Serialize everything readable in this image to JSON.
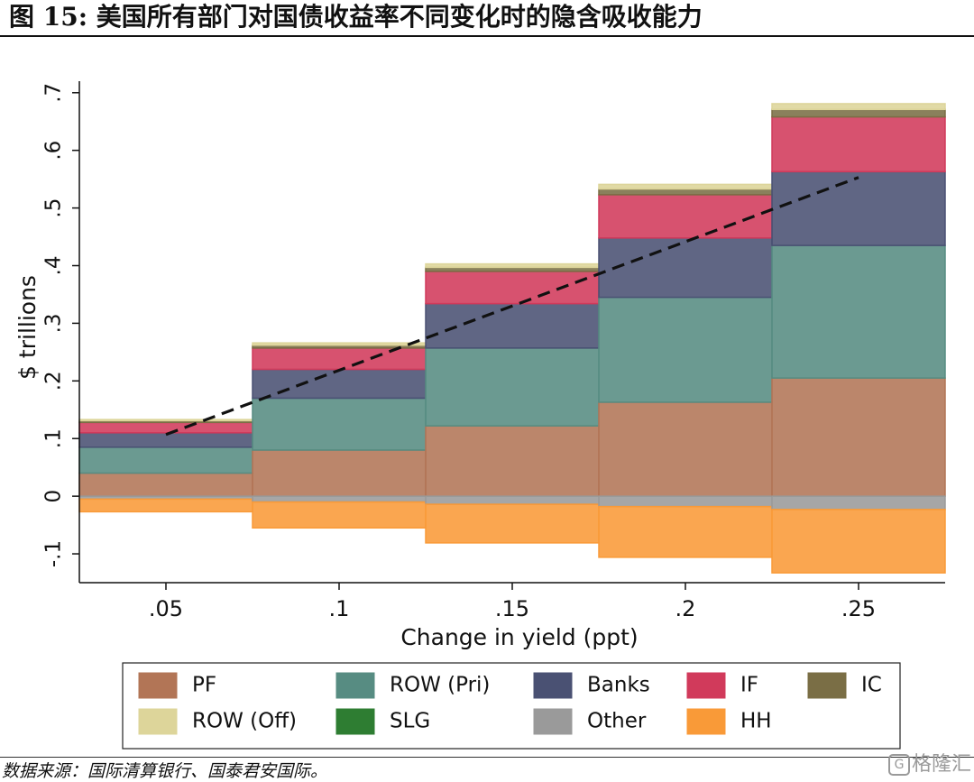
{
  "figure_title": "图 15:  美国所有部门对国债收益率不同变化时的隐含吸收能力",
  "source_text": "数据来源：国际清算银行、国泰君安国际。",
  "watermark_text": "格隆汇",
  "colors": {
    "PF": "#b27556",
    "ROW (Pri)": "#578c82",
    "Banks": "#4a5173",
    "IF": "#d13a5b",
    "IC": "#7a6e45",
    "ROW (Off)": "#ddd59a",
    "SLG": "#2e7d32",
    "Other": "#9a9a9a",
    "HH": "#f99a38",
    "trend": "#111111",
    "axis": "#111111"
  },
  "chart_data": {
    "type": "bar",
    "subtype": "stacked-step",
    "title": "",
    "xlabel": "Change in yield (ppt)",
    "ylabel": "$ trillions",
    "categories": [
      ".05",
      ".1",
      ".15",
      ".2",
      ".25"
    ],
    "x": [
      0.05,
      0.1,
      0.15,
      0.2,
      0.25
    ],
    "xlim": [
      0.025,
      0.275
    ],
    "ylim": [
      -0.15,
      0.72
    ],
    "yticks": [
      -0.1,
      0,
      0.1,
      0.2,
      0.3,
      0.4,
      0.5,
      0.6,
      0.7
    ],
    "ytick_labels": [
      "-.1",
      "0",
      ".1",
      ".2",
      ".3",
      ".4",
      ".5",
      ".6",
      ".7"
    ],
    "grid": false,
    "legend_position": "bottom",
    "series": [
      {
        "name": "PF",
        "values": [
          0.04,
          0.08,
          0.122,
          0.163,
          0.205
        ]
      },
      {
        "name": "ROW (Pri)",
        "values": [
          0.045,
          0.09,
          0.135,
          0.182,
          0.23
        ]
      },
      {
        "name": "Banks",
        "values": [
          0.025,
          0.05,
          0.077,
          0.103,
          0.128
        ]
      },
      {
        "name": "IF",
        "values": [
          0.018,
          0.037,
          0.056,
          0.075,
          0.095
        ]
      },
      {
        "name": "IC",
        "values": [
          0.003,
          0.005,
          0.007,
          0.01,
          0.013
        ]
      },
      {
        "name": "ROW (Off)",
        "values": [
          0.002,
          0.004,
          0.006,
          0.008,
          0.01
        ]
      },
      {
        "name": "SLG",
        "values": [
          0.0,
          0.0,
          0.0,
          0.0,
          0.0
        ]
      },
      {
        "name": "Other",
        "values": [
          -0.005,
          -0.01,
          -0.014,
          -0.018,
          -0.023
        ]
      },
      {
        "name": "HH",
        "values": [
          -0.022,
          -0.045,
          -0.067,
          -0.088,
          -0.11
        ]
      }
    ],
    "trend_line": {
      "x": [
        0.05,
        0.25
      ],
      "y": [
        0.107,
        0.553
      ],
      "style": "dashed"
    }
  },
  "legend": {
    "items": [
      {
        "label": "PF",
        "key": "PF"
      },
      {
        "label": "ROW (Pri)",
        "key": "ROW (Pri)"
      },
      {
        "label": "Banks",
        "key": "Banks"
      },
      {
        "label": "IF",
        "key": "IF"
      },
      {
        "label": "IC",
        "key": "IC"
      },
      {
        "label": "ROW (Off)",
        "key": "ROW (Off)"
      },
      {
        "label": "SLG",
        "key": "SLG"
      },
      {
        "label": "Other",
        "key": "Other"
      },
      {
        "label": "HH",
        "key": "HH"
      }
    ]
  }
}
